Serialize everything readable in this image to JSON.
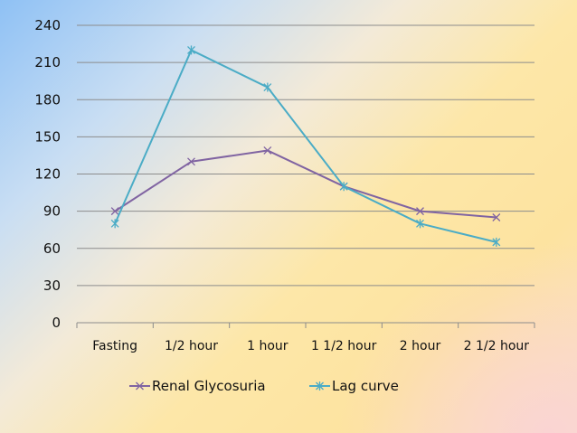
{
  "chart_data": {
    "type": "line",
    "categories": [
      "Fasting",
      "1/2 hour",
      "1 hour",
      "1 1/2 hour",
      "2 hour",
      "2 1/2 hour"
    ],
    "series": [
      {
        "name": "Renal Glycosuria",
        "values": [
          90,
          130,
          139,
          110,
          90,
          85
        ],
        "color": "#8064a2",
        "marker": "x"
      },
      {
        "name": "Lag curve",
        "values": [
          80,
          220,
          190,
          110,
          80,
          65
        ],
        "color": "#4bacc6",
        "marker": "star"
      }
    ],
    "y_ticks": [
      "0",
      "30",
      "60",
      "90",
      "120",
      "150",
      "180",
      "210",
      "240"
    ],
    "ylim": [
      0,
      240
    ],
    "grid": true,
    "legend_position": "bottom",
    "title": "",
    "xlabel": "",
    "ylabel": ""
  }
}
